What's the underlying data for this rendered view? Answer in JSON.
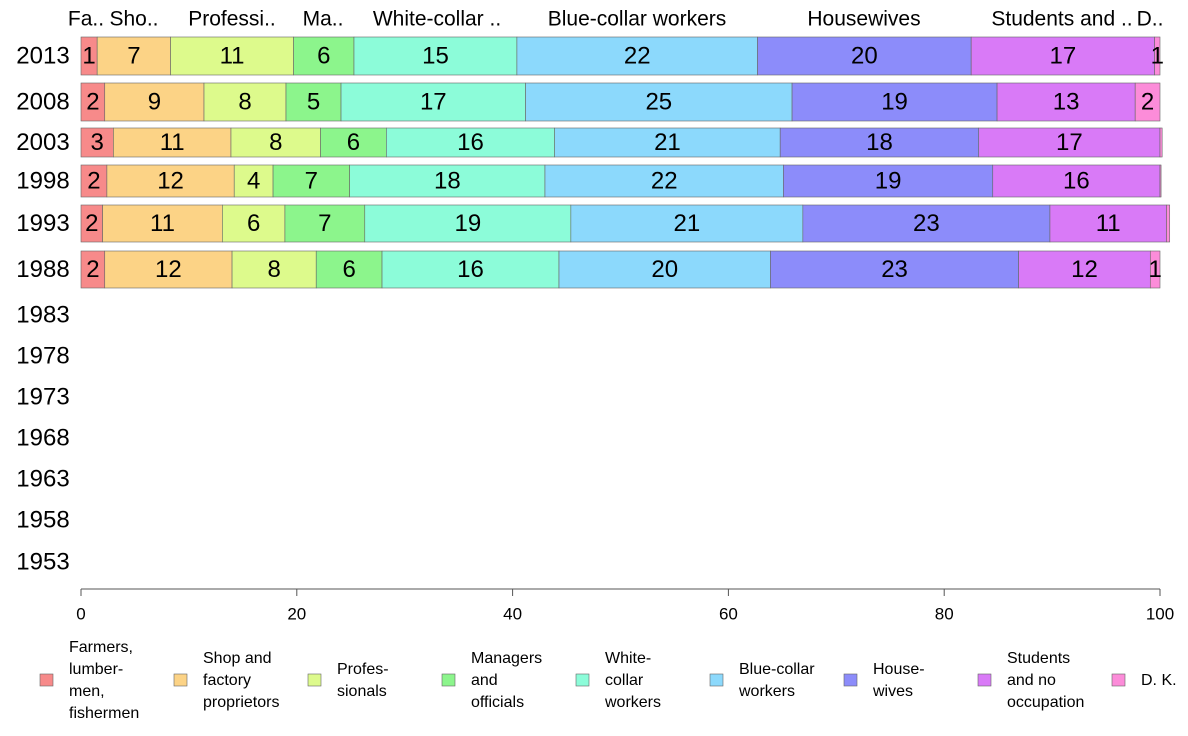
{
  "chart_data": {
    "type": "bar",
    "orientation": "horizontal",
    "stacked": true,
    "xlim": [
      0,
      100
    ],
    "x_ticks": [
      "0",
      "20",
      "40",
      "60",
      "80",
      "100"
    ],
    "grid": false,
    "legend_position": "bottom",
    "categories": [
      "2013",
      "2008",
      "2003",
      "1998",
      "1993",
      "1988",
      "1983",
      "1978",
      "1973",
      "1968",
      "1963",
      "1958",
      "1953"
    ],
    "top_labels": [
      "Fa..",
      "Sho..",
      "Professi..",
      "Ma..",
      "White-collar ..",
      "Blue-collar workers",
      "Housewives",
      "Students and ..",
      "D.."
    ],
    "series": [
      {
        "name": "Farmers, lumbermen, fishermen",
        "legend_lines": [
          "Farmers,",
          "lumber-",
          "men,",
          "fishermen"
        ],
        "color": "#f78a8a",
        "values": [
          1.5,
          2.2,
          3.0,
          2.4,
          2.0,
          2.2,
          null,
          null,
          null,
          null,
          null,
          null,
          null
        ],
        "labels": [
          "1",
          "2",
          "3",
          "2",
          "2",
          "2",
          "",
          "",
          "",
          "",
          "",
          "",
          ""
        ]
      },
      {
        "name": "Shop and factory proprietors",
        "legend_lines": [
          "Shop and",
          "factory",
          "proprietors"
        ],
        "color": "#fcd386",
        "values": [
          6.8,
          9.2,
          10.9,
          11.8,
          11.1,
          11.8,
          null,
          null,
          null,
          null,
          null,
          null,
          null
        ],
        "labels": [
          "7",
          "9",
          "11",
          "12",
          "11",
          "12",
          "",
          "",
          "",
          "",
          "",
          "",
          ""
        ]
      },
      {
        "name": "Professionals",
        "legend_lines": [
          "Profes-",
          "sionals"
        ],
        "color": "#ddfa8c",
        "values": [
          11.4,
          7.6,
          8.3,
          3.6,
          5.8,
          7.8,
          null,
          null,
          null,
          null,
          null,
          null,
          null
        ],
        "labels": [
          "11",
          "8",
          "8",
          "4",
          "6",
          "8",
          "",
          "",
          "",
          "",
          "",
          "",
          ""
        ]
      },
      {
        "name": "Managers and officials",
        "legend_lines": [
          "Managers",
          "and",
          "officials"
        ],
        "color": "#8cf58c",
        "values": [
          5.6,
          5.1,
          6.1,
          7.1,
          7.4,
          6.1,
          null,
          null,
          null,
          null,
          null,
          null,
          null
        ],
        "labels": [
          "6",
          "5",
          "6",
          "7",
          "7",
          "6",
          "",
          "",
          "",
          "",
          "",
          "",
          ""
        ]
      },
      {
        "name": "White-collar workers",
        "legend_lines": [
          "White-",
          "collar",
          "workers"
        ],
        "color": "#8cfcd9",
        "values": [
          15.1,
          17.1,
          15.6,
          18.1,
          19.1,
          16.4,
          null,
          null,
          null,
          null,
          null,
          null,
          null
        ],
        "labels": [
          "15",
          "17",
          "16",
          "18",
          "19",
          "16",
          "",
          "",
          "",
          "",
          "",
          "",
          ""
        ]
      },
      {
        "name": "Blue-collar workers",
        "legend_lines": [
          "Blue-collar",
          "workers"
        ],
        "color": "#8cd9fc",
        "values": [
          22.3,
          24.7,
          20.9,
          22.1,
          21.5,
          19.6,
          null,
          null,
          null,
          null,
          null,
          null,
          null
        ],
        "labels": [
          "22",
          "25",
          "21",
          "22",
          "21",
          "20",
          "",
          "",
          "",
          "",
          "",
          "",
          ""
        ]
      },
      {
        "name": "Housewives",
        "legend_lines": [
          "House-",
          "wives"
        ],
        "color": "#8c8cfa",
        "values": [
          19.8,
          19.0,
          18.4,
          19.4,
          22.9,
          23.0,
          null,
          null,
          null,
          null,
          null,
          null,
          null
        ],
        "labels": [
          "20",
          "19",
          "18",
          "19",
          "23",
          "23",
          "",
          "",
          "",
          "",
          "",
          "",
          ""
        ]
      },
      {
        "name": "Students and no occupation",
        "legend_lines": [
          "Students",
          "and no",
          "occupation"
        ],
        "color": "#d97af7",
        "values": [
          17.0,
          12.8,
          16.8,
          15.5,
          10.8,
          12.2,
          null,
          null,
          null,
          null,
          null,
          null,
          null
        ],
        "labels": [
          "17",
          "13",
          "17",
          "16",
          "11",
          "12",
          "",
          "",
          "",
          "",
          "",
          "",
          ""
        ]
      },
      {
        "name": "D. K.",
        "legend_lines": [
          "D. K."
        ],
        "color": "#fc8cd9",
        "values": [
          0.5,
          2.3,
          0.2,
          0.1,
          0.3,
          0.9,
          null,
          null,
          null,
          null,
          null,
          null,
          null
        ],
        "labels": [
          "1",
          "2",
          "",
          "",
          "",
          "1",
          "",
          "",
          "",
          "",
          "",
          "",
          ""
        ]
      }
    ]
  }
}
